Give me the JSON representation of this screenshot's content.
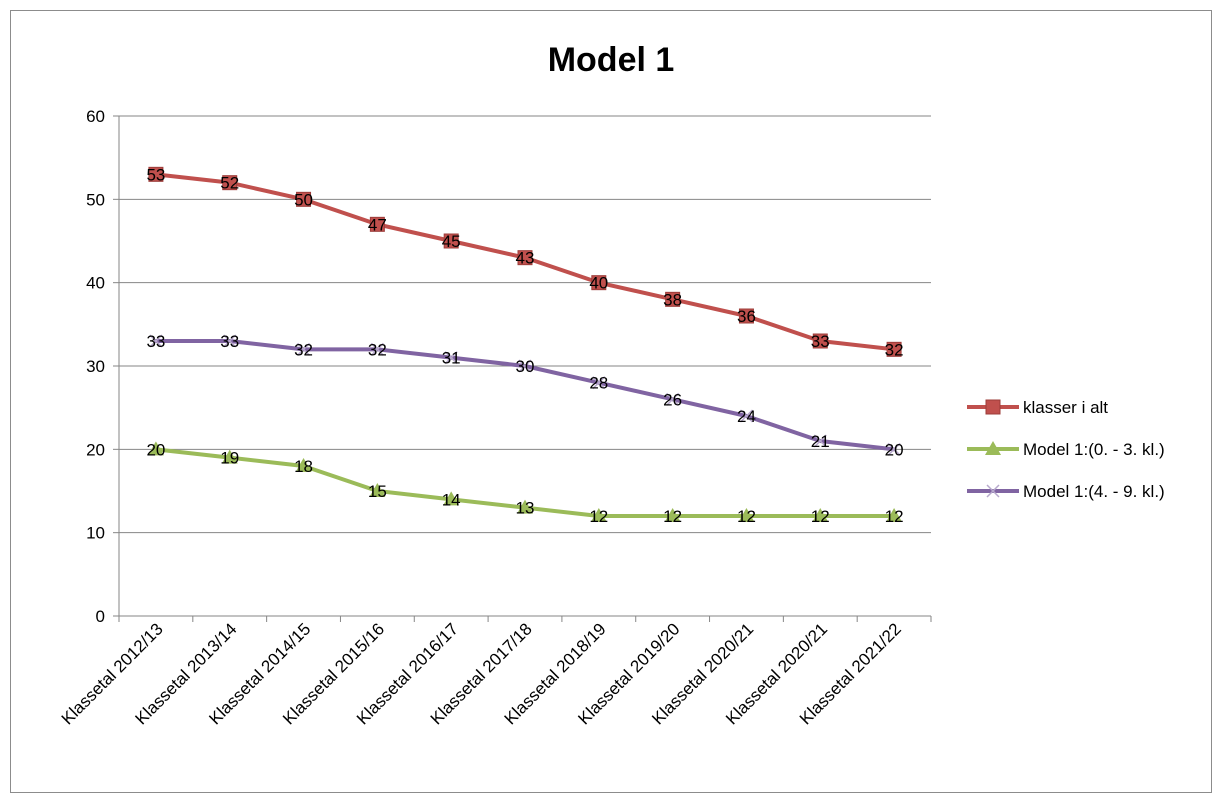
{
  "chart_data": {
    "type": "line",
    "title": "Model 1",
    "xlabel": "",
    "ylabel": "",
    "ylim": [
      0,
      60
    ],
    "yticks": [
      0,
      10,
      20,
      30,
      40,
      50,
      60
    ],
    "grid": true,
    "legend_position": "right",
    "categories": [
      "Klassetal 2012/13",
      "Klassetal 2013/14",
      "Klassetal 2014/15",
      "Klassetal 2015/16",
      "Klassetal 2016/17",
      "Klassetal 2017/18",
      "Klassetal 2018/19",
      "Klassetal 2019/20",
      "Klassetal 2020/21",
      "Klassetal 2020/21",
      "Klassetal 2021/22"
    ],
    "series": [
      {
        "name": "klasser i alt",
        "color": "#c0504d",
        "marker": "square",
        "values": [
          53,
          52,
          50,
          47,
          45,
          43,
          40,
          38,
          36,
          33,
          32
        ]
      },
      {
        "name": "Model 1:(0. - 3. kl.)",
        "color": "#9bbb59",
        "marker": "triangle",
        "values": [
          20,
          19,
          18,
          15,
          14,
          13,
          12,
          12,
          12,
          12,
          12
        ]
      },
      {
        "name": "Model 1:(4. - 9. kl.)",
        "color": "#8064a2",
        "marker": "x",
        "values": [
          33,
          33,
          32,
          32,
          31,
          30,
          28,
          26,
          24,
          21,
          20
        ]
      }
    ]
  }
}
